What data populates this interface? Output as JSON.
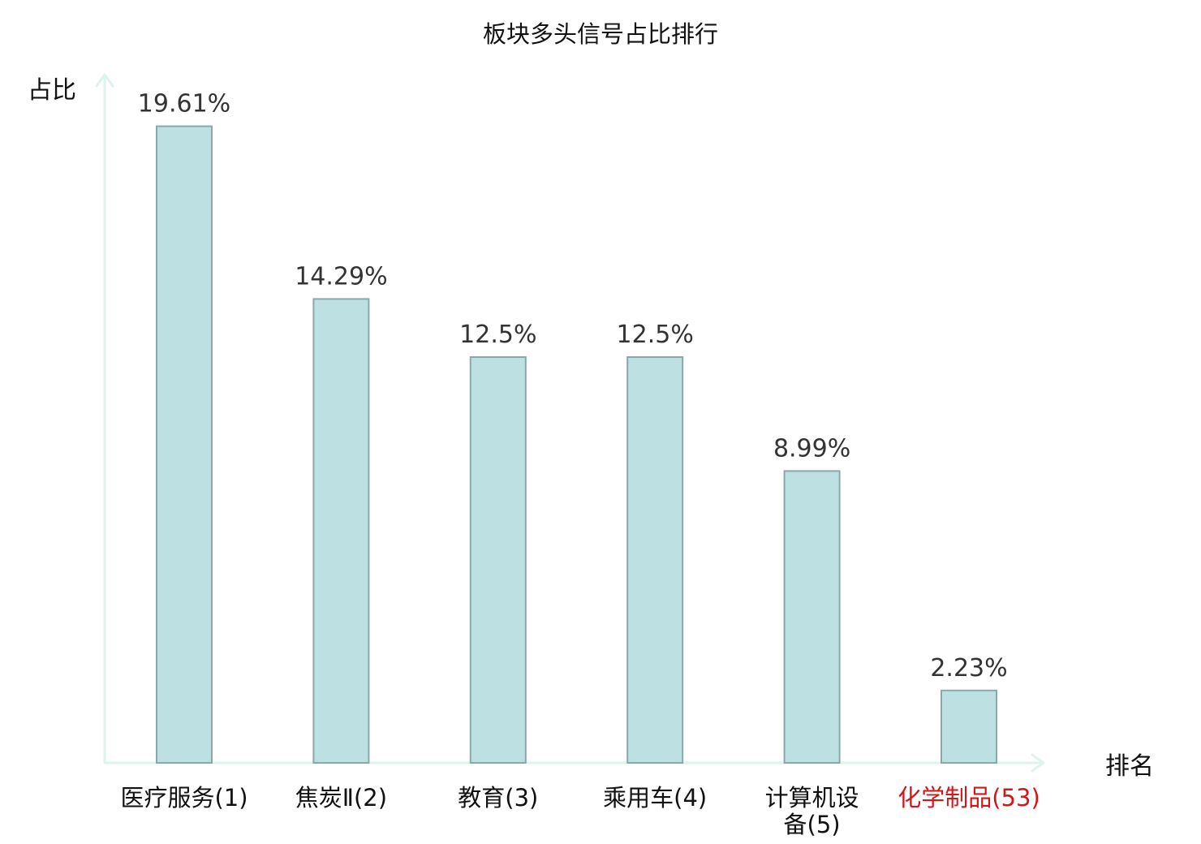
{
  "chart_data": {
    "type": "bar",
    "title": "板块多头信号占比排行",
    "ylabel": "占比",
    "xlabel": "排名",
    "categories": [
      {
        "name": "医疗服务",
        "rank": "(1)"
      },
      {
        "name": "焦炭Ⅱ",
        "rank": "(2)"
      },
      {
        "name": "教育",
        "rank": "(3)"
      },
      {
        "name": "乘用车",
        "rank": "(4)"
      },
      {
        "name": "计算机设备",
        "rank": "(5)"
      },
      {
        "name": "化学制品",
        "rank": "(53)"
      }
    ],
    "values": [
      19.61,
      14.29,
      12.5,
      12.5,
      8.99,
      2.23
    ],
    "value_labels": [
      "19.61%",
      "14.29%",
      "12.5%",
      "12.5%",
      "8.99%",
      "2.23%"
    ],
    "highlight_index": 5,
    "ylim": [
      0,
      20.5
    ],
    "grid": false,
    "legend": "none",
    "colors": {
      "bar_fill": "#bde0e3",
      "bar_stroke": "#8aa8aa",
      "axis": "#def2ee",
      "highlight_text": "#d51616",
      "normal_text": "#111111"
    }
  }
}
